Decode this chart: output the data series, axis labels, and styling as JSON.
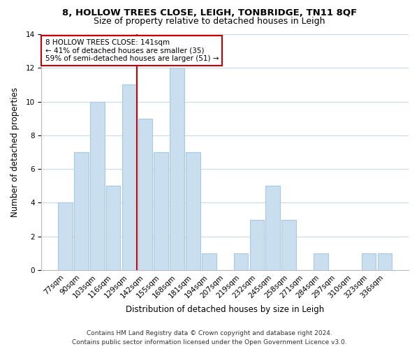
{
  "title": "8, HOLLOW TREES CLOSE, LEIGH, TONBRIDGE, TN11 8QF",
  "subtitle": "Size of property relative to detached houses in Leigh",
  "xlabel": "Distribution of detached houses by size in Leigh",
  "ylabel": "Number of detached properties",
  "bin_labels": [
    "77sqm",
    "90sqm",
    "103sqm",
    "116sqm",
    "129sqm",
    "142sqm",
    "155sqm",
    "168sqm",
    "181sqm",
    "194sqm",
    "207sqm",
    "219sqm",
    "232sqm",
    "245sqm",
    "258sqm",
    "271sqm",
    "284sqm",
    "297sqm",
    "310sqm",
    "323sqm",
    "336sqm"
  ],
  "bar_heights": [
    4,
    7,
    10,
    5,
    11,
    9,
    7,
    12,
    7,
    1,
    0,
    1,
    3,
    5,
    3,
    0,
    1,
    0,
    0,
    1,
    1
  ],
  "bar_color": "#c9dff0",
  "bar_edge_color": "#a8c8e8",
  "vline_color": "#cc0000",
  "vline_x_index": 5,
  "annotation_text": "8 HOLLOW TREES CLOSE: 141sqm\n← 41% of detached houses are smaller (35)\n59% of semi-detached houses are larger (51) →",
  "annotation_box_edgecolor": "#cc0000",
  "annotation_box_facecolor": "#ffffff",
  "ylim": [
    0,
    14
  ],
  "yticks": [
    0,
    2,
    4,
    6,
    8,
    10,
    12,
    14
  ],
  "footer_text": "Contains HM Land Registry data © Crown copyright and database right 2024.\nContains public sector information licensed under the Open Government Licence v3.0.",
  "background_color": "#ffffff",
  "grid_color": "#c8d8ec",
  "title_fontsize": 9.5,
  "subtitle_fontsize": 9,
  "axis_label_fontsize": 8.5,
  "tick_fontsize": 7.5,
  "annotation_fontsize": 7.5,
  "footer_fontsize": 6.5
}
